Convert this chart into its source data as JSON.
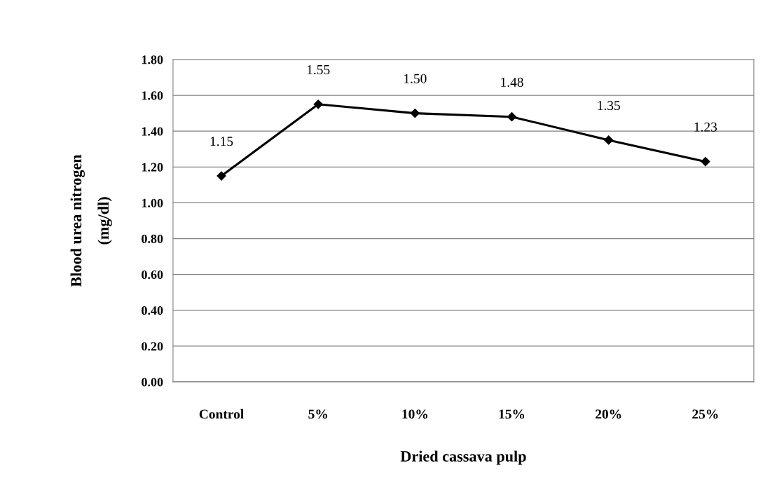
{
  "chart_data": {
    "type": "line",
    "xlabel": "Dried cassava pulp",
    "ylabel": "Blood urea nitrogen\n(mg/dl)",
    "categories": [
      "Control",
      "5%",
      "10%",
      "15%",
      "20%",
      "25%"
    ],
    "series": [
      {
        "color": "#000000",
        "values": [
          1.15,
          1.55,
          1.5,
          1.48,
          1.35,
          1.23
        ]
      }
    ],
    "ylim": [
      0,
      1.8
    ],
    "yticks": [
      {
        "value": 0,
        "label": "0.00"
      },
      {
        "value": 0.2,
        "label": "0.20"
      },
      {
        "value": 0.4,
        "label": "0.40"
      },
      {
        "value": 0.6,
        "label": "0.60"
      },
      {
        "value": 0.8,
        "label": "0.80"
      },
      {
        "value": 1.0,
        "label": "1.00"
      },
      {
        "value": 1.2,
        "label": "1.20"
      },
      {
        "value": 1.4,
        "label": "1.40"
      },
      {
        "value": 1.6,
        "label": "1.60"
      },
      {
        "value": 1.8,
        "label": "1.80"
      }
    ],
    "value_labels": [
      "1.15",
      "1.55",
      "1.50",
      "1.48",
      "1.35",
      "1.23"
    ],
    "grid": "y",
    "marker": "diamond",
    "line_style": "solid"
  }
}
